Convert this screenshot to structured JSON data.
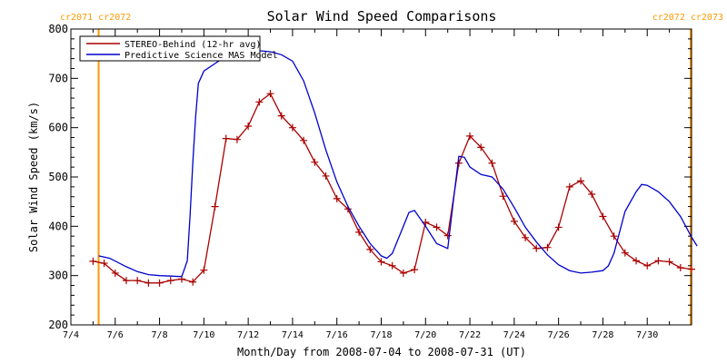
{
  "chart_data": {
    "type": "line",
    "title": "Solar Wind Speed Comparisons",
    "xlabel": "Month/Day from 2008-07-04 to 2008-07-31 (UT)",
    "ylabel": "Solar Wind Speed (km/s)",
    "xlim": [
      "2008-07-04",
      "2008-08-01"
    ],
    "ylim": [
      200,
      800
    ],
    "x_ticks": [
      "7/4",
      "7/6",
      "7/8",
      "7/10",
      "7/12",
      "7/14",
      "7/16",
      "7/18",
      "7/20",
      "7/22",
      "7/24",
      "7/26",
      "7/28",
      "7/30"
    ],
    "x_tick_dates": [
      "2008-07-04",
      "2008-07-06",
      "2008-07-08",
      "2008-07-10",
      "2008-07-12",
      "2008-07-14",
      "2008-07-16",
      "2008-07-18",
      "2008-07-20",
      "2008-07-22",
      "2008-07-24",
      "2008-07-26",
      "2008-07-28",
      "2008-07-30"
    ],
    "y_ticks": [
      200,
      300,
      400,
      500,
      600,
      700,
      800
    ],
    "legend_position": "top-left",
    "grid": false,
    "carrington_markers": [
      {
        "label_left": "cr2071",
        "label_right": "cr2072",
        "x": "2008-07-05 06:00",
        "color": "#ff9900",
        "label_side": "left"
      },
      {
        "label_left": "cr2072",
        "label_right": "cr2073",
        "x": "2008-08-01 00:00",
        "color": "#ff9900",
        "label_side": "right"
      }
    ],
    "series": [
      {
        "name": "STEREO-Behind (12-hr avg)",
        "color": "#aa0000",
        "marker": "+",
        "points": [
          [
            "2008-07-05 00:00",
            329
          ],
          [
            "2008-07-05 12:00",
            325
          ],
          [
            "2008-07-06 00:00",
            305
          ],
          [
            "2008-07-06 12:00",
            290
          ],
          [
            "2008-07-07 00:00",
            290
          ],
          [
            "2008-07-07 12:00",
            285
          ],
          [
            "2008-07-08 00:00",
            285
          ],
          [
            "2008-07-08 12:00",
            290
          ],
          [
            "2008-07-09 00:00",
            293
          ],
          [
            "2008-07-09 12:00",
            287
          ],
          [
            "2008-07-10 00:00",
            311
          ],
          [
            "2008-07-10 12:00",
            440
          ],
          [
            "2008-07-11 00:00",
            578
          ],
          [
            "2008-07-11 12:00",
            576
          ],
          [
            "2008-07-12 00:00",
            603
          ],
          [
            "2008-07-12 12:00",
            652
          ],
          [
            "2008-07-13 00:00",
            669
          ],
          [
            "2008-07-13 12:00",
            624
          ],
          [
            "2008-07-14 00:00",
            600
          ],
          [
            "2008-07-14 12:00",
            574
          ],
          [
            "2008-07-15 00:00",
            530
          ],
          [
            "2008-07-15 12:00",
            502
          ],
          [
            "2008-07-16 00:00",
            456
          ],
          [
            "2008-07-16 12:00",
            435
          ],
          [
            "2008-07-17 00:00",
            388
          ],
          [
            "2008-07-17 12:00",
            353
          ],
          [
            "2008-07-18 00:00",
            328
          ],
          [
            "2008-07-18 12:00",
            320
          ],
          [
            "2008-07-19 00:00",
            305
          ],
          [
            "2008-07-19 12:00",
            312
          ],
          [
            "2008-07-20 00:00",
            408
          ],
          [
            "2008-07-20 12:00",
            398
          ],
          [
            "2008-07-21 00:00",
            381
          ],
          [
            "2008-07-21 12:00",
            528
          ],
          [
            "2008-07-22 00:00",
            583
          ],
          [
            "2008-07-22 12:00",
            560
          ],
          [
            "2008-07-23 00:00",
            528
          ],
          [
            "2008-07-23 12:00",
            461
          ],
          [
            "2008-07-24 00:00",
            410
          ],
          [
            "2008-07-24 12:00",
            377
          ],
          [
            "2008-07-25 00:00",
            355
          ],
          [
            "2008-07-25 12:00",
            357
          ],
          [
            "2008-07-26 00:00",
            398
          ],
          [
            "2008-07-26 12:00",
            480
          ],
          [
            "2008-07-27 00:00",
            492
          ],
          [
            "2008-07-27 12:00",
            465
          ],
          [
            "2008-07-28 00:00",
            420
          ],
          [
            "2008-07-28 12:00",
            380
          ],
          [
            "2008-07-29 00:00",
            346
          ],
          [
            "2008-07-29 12:00",
            330
          ],
          [
            "2008-07-30 00:00",
            320
          ],
          [
            "2008-07-30 12:00",
            330
          ],
          [
            "2008-07-31 00:00",
            328
          ],
          [
            "2008-07-31 12:00",
            316
          ],
          [
            "2008-08-01 00:00",
            313
          ]
        ]
      },
      {
        "name": "Predictive Science MAS Model",
        "color": "#0000cc",
        "marker": "none",
        "points": [
          [
            "2008-07-05 06:00",
            340
          ],
          [
            "2008-07-05 18:00",
            335
          ],
          [
            "2008-07-06 12:00",
            318
          ],
          [
            "2008-07-07 00:00",
            308
          ],
          [
            "2008-07-07 12:00",
            302
          ],
          [
            "2008-07-08 00:00",
            300
          ],
          [
            "2008-07-08 12:00",
            299
          ],
          [
            "2008-07-09 00:00",
            298
          ],
          [
            "2008-07-09 06:00",
            330
          ],
          [
            "2008-07-09 09:00",
            420
          ],
          [
            "2008-07-09 12:00",
            530
          ],
          [
            "2008-07-09 15:00",
            620
          ],
          [
            "2008-07-09 18:00",
            690
          ],
          [
            "2008-07-10 00:00",
            715
          ],
          [
            "2008-07-10 12:00",
            730
          ],
          [
            "2008-07-11 00:00",
            745
          ],
          [
            "2008-07-11 12:00",
            750
          ],
          [
            "2008-07-12 00:00",
            756
          ],
          [
            "2008-07-12 12:00",
            756
          ],
          [
            "2008-07-13 00:00",
            754
          ],
          [
            "2008-07-13 12:00",
            748
          ],
          [
            "2008-07-14 00:00",
            735
          ],
          [
            "2008-07-14 12:00",
            695
          ],
          [
            "2008-07-15 00:00",
            630
          ],
          [
            "2008-07-15 12:00",
            555
          ],
          [
            "2008-07-16 00:00",
            490
          ],
          [
            "2008-07-16 12:00",
            440
          ],
          [
            "2008-07-17 00:00",
            400
          ],
          [
            "2008-07-17 12:00",
            365
          ],
          [
            "2008-07-18 00:00",
            340
          ],
          [
            "2008-07-18 06:00",
            335
          ],
          [
            "2008-07-18 12:00",
            345
          ],
          [
            "2008-07-19 00:00",
            400
          ],
          [
            "2008-07-19 06:00",
            428
          ],
          [
            "2008-07-19 12:00",
            432
          ],
          [
            "2008-07-20 00:00",
            400
          ],
          [
            "2008-07-20 12:00",
            365
          ],
          [
            "2008-07-21 00:00",
            355
          ],
          [
            "2008-07-21 06:00",
            450
          ],
          [
            "2008-07-21 12:00",
            542
          ],
          [
            "2008-07-21 18:00",
            540
          ],
          [
            "2008-07-22 00:00",
            520
          ],
          [
            "2008-07-22 12:00",
            505
          ],
          [
            "2008-07-23 00:00",
            500
          ],
          [
            "2008-07-23 12:00",
            475
          ],
          [
            "2008-07-24 00:00",
            438
          ],
          [
            "2008-07-24 12:00",
            398
          ],
          [
            "2008-07-25 00:00",
            368
          ],
          [
            "2008-07-25 12:00",
            342
          ],
          [
            "2008-07-26 00:00",
            322
          ],
          [
            "2008-07-26 12:00",
            310
          ],
          [
            "2008-07-27 00:00",
            305
          ],
          [
            "2008-07-27 12:00",
            307
          ],
          [
            "2008-07-28 00:00",
            310
          ],
          [
            "2008-07-28 06:00",
            320
          ],
          [
            "2008-07-28 12:00",
            345
          ],
          [
            "2008-07-29 00:00",
            430
          ],
          [
            "2008-07-29 12:00",
            470
          ],
          [
            "2008-07-29 18:00",
            485
          ],
          [
            "2008-07-30 00:00",
            483
          ],
          [
            "2008-07-30 12:00",
            470
          ],
          [
            "2008-07-31 00:00",
            450
          ],
          [
            "2008-07-31 12:00",
            420
          ],
          [
            "2008-08-01 00:00",
            378
          ],
          [
            "2008-08-01 06:00",
            360
          ]
        ]
      }
    ]
  }
}
